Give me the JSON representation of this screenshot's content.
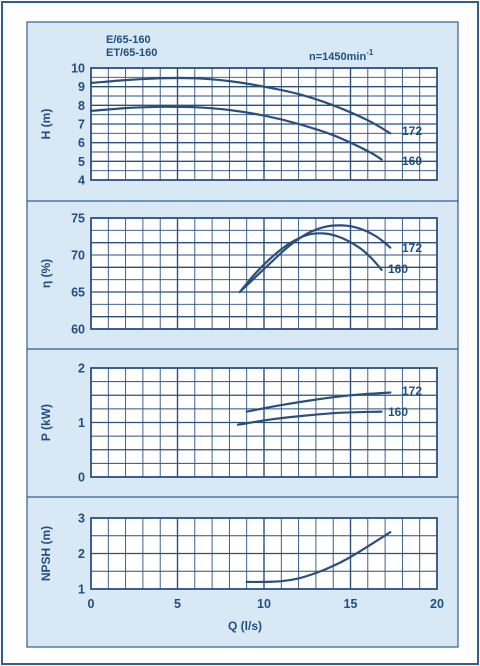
{
  "header": {
    "models": [
      "E/65-160",
      "ET/65-160"
    ],
    "speed": "n=1450min",
    "speed_exp": "-1"
  },
  "colors": {
    "panel_bg": "#d9e8f5",
    "frame": "#2f5e8f",
    "curve": "#2a4f7e",
    "text": "#1f4f82",
    "grid": "#2a4f7e",
    "plot_bg": "#ffffff"
  },
  "chart_data": [
    {
      "type": "line",
      "ylabel": "H (m)",
      "xlim": [
        0,
        20
      ],
      "ylim": [
        4,
        10
      ],
      "yticks": [
        4,
        5,
        6,
        7,
        8,
        9,
        10
      ],
      "series": [
        {
          "name": "172",
          "x": [
            0,
            2,
            4,
            6,
            8,
            10,
            12,
            14,
            16,
            17.3
          ],
          "y": [
            9.2,
            9.35,
            9.45,
            9.45,
            9.3,
            9.0,
            8.6,
            8.0,
            7.2,
            6.5
          ]
        },
        {
          "name": "160",
          "x": [
            0,
            2,
            4,
            6,
            8,
            10,
            12,
            14,
            16,
            16.8
          ],
          "y": [
            7.7,
            7.85,
            7.92,
            7.9,
            7.75,
            7.45,
            7.0,
            6.4,
            5.55,
            5.1
          ]
        }
      ]
    },
    {
      "type": "line",
      "ylabel": "η (%)",
      "xlim": [
        0,
        20
      ],
      "ylim": [
        60,
        75
      ],
      "yticks": [
        60,
        65,
        70,
        75
      ],
      "series": [
        {
          "name": "172",
          "x": [
            8.6,
            9.5,
            10.5,
            11.5,
            12.5,
            13.5,
            14.5,
            15.5,
            16.5,
            17.3
          ],
          "y": [
            65.0,
            67.0,
            69.2,
            71.3,
            72.9,
            73.8,
            74.0,
            73.6,
            72.5,
            71.0
          ]
        },
        {
          "name": "160",
          "x": [
            8.6,
            9.5,
            10.5,
            11.5,
            12.5,
            13.5,
            14.5,
            15.5,
            16.2,
            16.8
          ],
          "y": [
            65.0,
            67.5,
            69.8,
            71.6,
            72.7,
            72.9,
            72.3,
            71.0,
            69.6,
            68.0
          ]
        }
      ]
    },
    {
      "type": "line",
      "ylabel": "P (kW)",
      "xlim": [
        0,
        20
      ],
      "ylim": [
        0,
        2
      ],
      "yticks": [
        0,
        1,
        2
      ],
      "series": [
        {
          "name": "172",
          "x": [
            9,
            11,
            13,
            15,
            17.3
          ],
          "y": [
            1.2,
            1.32,
            1.42,
            1.5,
            1.55
          ]
        },
        {
          "name": "160",
          "x": [
            8.5,
            10.5,
            12.5,
            14.5,
            16.8
          ],
          "y": [
            0.96,
            1.06,
            1.13,
            1.18,
            1.2
          ]
        }
      ]
    },
    {
      "type": "line",
      "ylabel": "NPSH (m)",
      "xlabel": "Q (l/s)",
      "xlim": [
        0,
        20
      ],
      "ylim": [
        1,
        3
      ],
      "yticks": [
        1,
        2,
        3
      ],
      "xticks": [
        0,
        5,
        10,
        15,
        20
      ],
      "series": [
        {
          "x": [
            9,
            10,
            11,
            12,
            13,
            14,
            15,
            16,
            17.3
          ],
          "y": [
            1.2,
            1.2,
            1.22,
            1.3,
            1.45,
            1.65,
            1.9,
            2.2,
            2.6
          ]
        }
      ]
    }
  ]
}
